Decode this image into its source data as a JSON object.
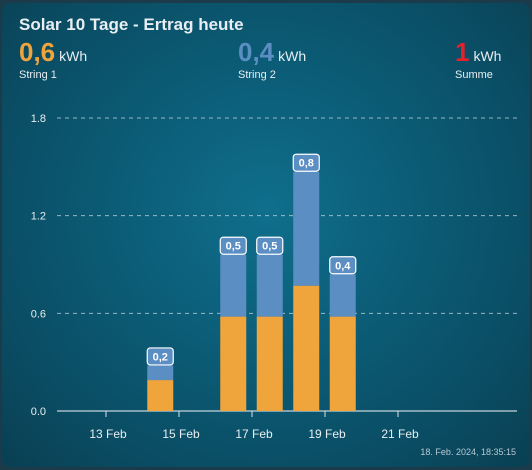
{
  "title": "Solar 10 Tage - Ertrag heute",
  "stats": [
    {
      "value": "0,6",
      "unit": "kWh",
      "label": "String 1",
      "color": "#f0a43c"
    },
    {
      "value": "0,4",
      "unit": "kWh",
      "label": "String 2",
      "color": "#5b8ec3"
    },
    {
      "value": "1",
      "unit": "kWh",
      "label": "Summe",
      "color": "#e8202a"
    }
  ],
  "timestamp": "18. Feb. 2024, 18:35:15",
  "colors": {
    "string1": "#f0a43c",
    "string2": "#5b8ec3"
  },
  "chart_data": {
    "type": "bar",
    "stacked": true,
    "x_ticks": [
      "13 Feb",
      "15 Feb",
      "17 Feb",
      "19 Feb",
      "21 Feb"
    ],
    "y_ticks": [
      "0.0",
      "0.6",
      "1.2",
      "1.8"
    ],
    "ylim": [
      0,
      1.8
    ],
    "grid": true,
    "bars": [
      {
        "date": "2024-02-14",
        "string1": 0.19,
        "string2": 0.09,
        "label": "0,2"
      },
      {
        "date": "2024-02-16",
        "string1": 0.58,
        "string2": 0.38,
        "label": "0,5"
      },
      {
        "date": "2024-02-17",
        "string1": 0.58,
        "string2": 0.38,
        "label": "0,5"
      },
      {
        "date": "2024-02-18",
        "string1": 0.77,
        "string2": 0.7,
        "label": "0,8"
      },
      {
        "date": "2024-02-19",
        "string1": 0.58,
        "string2": 0.26,
        "label": "0,4"
      }
    ]
  }
}
